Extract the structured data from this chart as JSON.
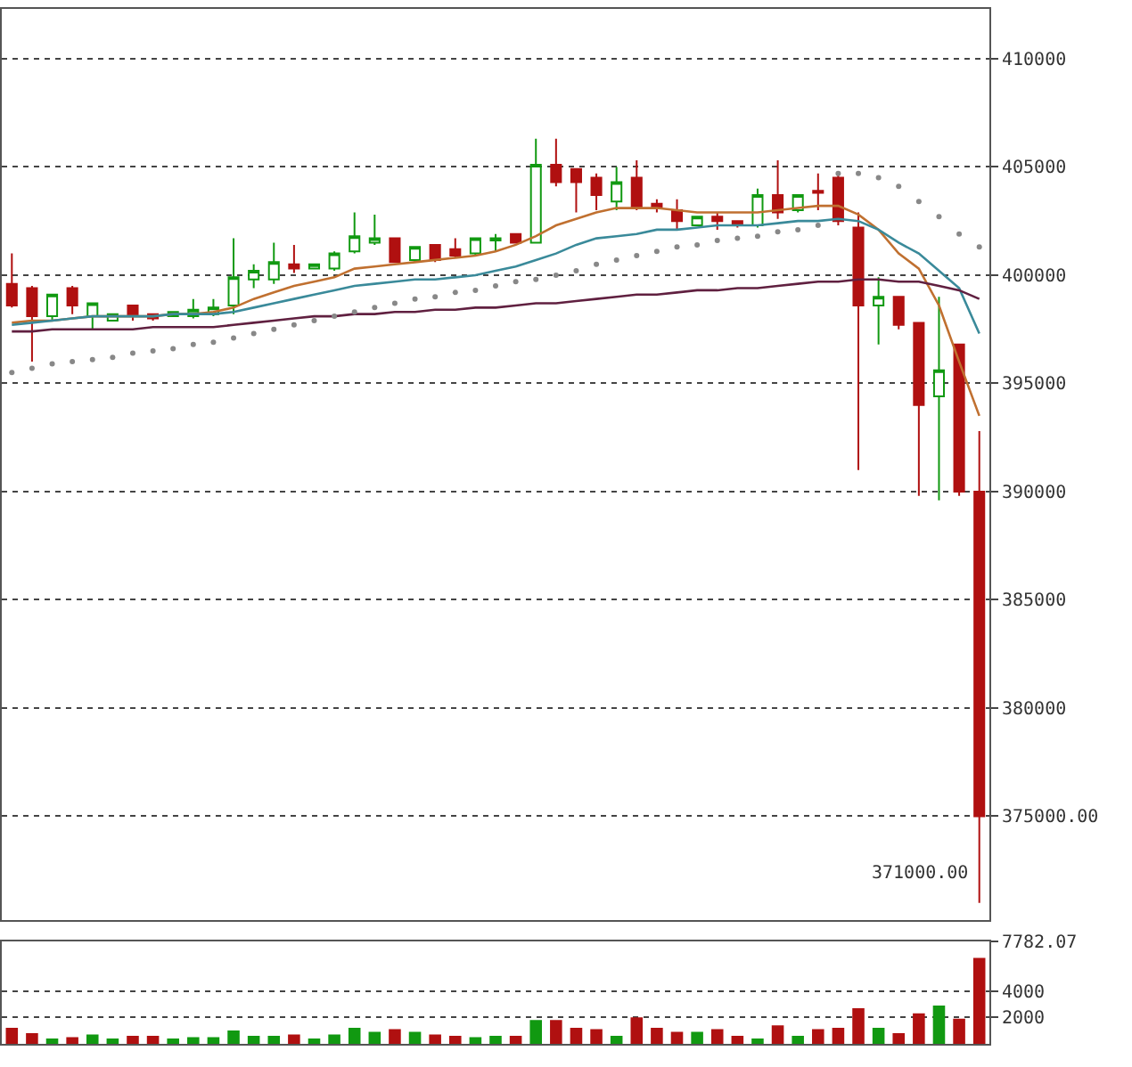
{
  "chart_data": [
    {
      "type": "candlestick",
      "categories": [
        null,
        null,
        null,
        null,
        null,
        null,
        null,
        null,
        null,
        null,
        null,
        null,
        null,
        null,
        null,
        null,
        null,
        null,
        null,
        null,
        null,
        null,
        null,
        null,
        null,
        null,
        null,
        null,
        null,
        null,
        null,
        null,
        null,
        null,
        null,
        null,
        null,
        null,
        null,
        null,
        null,
        null,
        null,
        null,
        null,
        null,
        null,
        null,
        null
      ],
      "ohlc": [
        [
          399600,
          401000,
          398500,
          398600
        ],
        [
          399400,
          399500,
          396000,
          398100
        ],
        [
          398100,
          399100,
          397900,
          399100
        ],
        [
          399400,
          399500,
          398200,
          398600
        ],
        [
          398100,
          398700,
          397500,
          398700
        ],
        [
          397900,
          398200,
          397900,
          398200
        ],
        [
          398600,
          398600,
          397900,
          398100
        ],
        [
          398200,
          398200,
          397900,
          398000
        ],
        [
          398100,
          398300,
          398100,
          398300
        ],
        [
          398100,
          398900,
          398000,
          398400
        ],
        [
          398200,
          398900,
          398100,
          398500
        ],
        [
          398600,
          401700,
          398200,
          399900
        ],
        [
          399800,
          400500,
          399400,
          400200
        ],
        [
          399800,
          401500,
          399600,
          400600
        ],
        [
          400500,
          401400,
          400100,
          400300
        ],
        [
          400300,
          400500,
          400300,
          400500
        ],
        [
          400300,
          401100,
          400200,
          401000
        ],
        [
          401100,
          402900,
          401000,
          401800
        ],
        [
          401500,
          402800,
          401400,
          401700
        ],
        [
          401700,
          401700,
          400600,
          400600
        ],
        [
          400700,
          401300,
          400600,
          401300
        ],
        [
          401400,
          401400,
          400600,
          400700
        ],
        [
          401200,
          401700,
          400800,
          400900
        ],
        [
          401000,
          401700,
          400900,
          401700
        ],
        [
          401600,
          401900,
          401100,
          401700
        ],
        [
          401900,
          401900,
          401500,
          401500
        ],
        [
          401500,
          406300,
          401500,
          405100
        ],
        [
          405100,
          406300,
          404100,
          404300
        ],
        [
          404900,
          404900,
          402900,
          404300
        ],
        [
          404500,
          404700,
          403000,
          403700
        ],
        [
          403400,
          405000,
          403000,
          404300
        ],
        [
          404500,
          405300,
          403000,
          403100
        ],
        [
          403300,
          403500,
          402900,
          403100
        ],
        [
          403000,
          403500,
          402100,
          402500
        ],
        [
          402300,
          402700,
          402300,
          402700
        ],
        [
          402700,
          402900,
          402100,
          402500
        ],
        [
          402500,
          402500,
          402200,
          402300
        ],
        [
          402300,
          404000,
          402200,
          403700
        ],
        [
          403700,
          405300,
          402600,
          402900
        ],
        [
          403000,
          403700,
          402900,
          403700
        ],
        [
          403900,
          404700,
          403000,
          403800
        ],
        [
          404500,
          404600,
          402300,
          402500
        ],
        [
          402200,
          402900,
          391000,
          398600
        ],
        [
          398600,
          399900,
          396800,
          399000
        ],
        [
          399000,
          399000,
          397500,
          397700
        ],
        [
          397800,
          397800,
          389800,
          394000
        ],
        [
          394400,
          399000,
          389600,
          395600
        ],
        [
          396800,
          396800,
          389800,
          390000
        ],
        [
          390000,
          392800,
          371000,
          375000
        ]
      ],
      "colors": [
        "#b01010",
        "#b01010",
        "#119911",
        "#b01010",
        "#119911",
        "#119911",
        "#b01010",
        "#b01010",
        "#119911",
        "#119911",
        "#119911",
        "#119911",
        "#119911",
        "#119911",
        "#b01010",
        "#119911",
        "#119911",
        "#119911",
        "#119911",
        "#b01010",
        "#119911",
        "#b01010",
        "#b01010",
        "#119911",
        "#119911",
        "#b01010",
        "#119911",
        "#b01010",
        "#b01010",
        "#b01010",
        "#119911",
        "#b01010",
        "#b01010",
        "#b01010",
        "#119911",
        "#b01010",
        "#b01010",
        "#119911",
        "#b01010",
        "#119911",
        "#b01010",
        "#b01010",
        "#b01010",
        "#119911",
        "#b01010",
        "#b01010",
        "#119911",
        "#b01010",
        "#b01010"
      ],
      "series": [
        {
          "type": "line",
          "color": "#c07030",
          "values": [
            397800,
            397900,
            397900,
            398000,
            398100,
            398100,
            398100,
            398100,
            398200,
            398200,
            398300,
            398500,
            398900,
            399200,
            399500,
            399700,
            399900,
            400300,
            400400,
            400500,
            400600,
            400700,
            400800,
            400900,
            401100,
            401400,
            401800,
            402300,
            402600,
            402900,
            403100,
            403100,
            403100,
            403000,
            402900,
            402900,
            402900,
            402900,
            403000,
            403100,
            403200,
            403200,
            402800,
            402100,
            401000,
            400300,
            398600,
            396000,
            393500
          ]
        },
        {
          "type": "line",
          "color": "#3a8a9a",
          "values": [
            397700,
            397800,
            397900,
            398000,
            398100,
            398100,
            398100,
            398100,
            398200,
            398200,
            398200,
            398300,
            398500,
            398700,
            398900,
            399100,
            399300,
            399500,
            399600,
            399700,
            399800,
            399800,
            399900,
            400000,
            400200,
            400400,
            400700,
            401000,
            401400,
            401700,
            401800,
            401900,
            402100,
            402100,
            402200,
            402300,
            402300,
            402300,
            402400,
            402500,
            402500,
            402600,
            402500,
            402100,
            401500,
            401000,
            400200,
            399400,
            397300
          ]
        },
        {
          "type": "line",
          "color": "#602040",
          "values": [
            397400,
            397400,
            397500,
            397500,
            397500,
            397500,
            397500,
            397600,
            397600,
            397600,
            397600,
            397700,
            397800,
            397900,
            398000,
            398100,
            398100,
            398200,
            398200,
            398300,
            398300,
            398400,
            398400,
            398500,
            398500,
            398600,
            398700,
            398700,
            398800,
            398900,
            399000,
            399100,
            399100,
            399200,
            399300,
            399300,
            399400,
            399400,
            399500,
            399600,
            399700,
            399700,
            399800,
            399800,
            399700,
            399700,
            399500,
            399300,
            398900
          ]
        },
        {
          "type": "scatter",
          "color": "#888888",
          "marker": "circle",
          "values": [
            395500,
            395700,
            395900,
            396000,
            396100,
            396200,
            396400,
            396500,
            396600,
            396800,
            396900,
            397100,
            397300,
            397500,
            397700,
            397900,
            398100,
            398300,
            398500,
            398700,
            398900,
            399000,
            399200,
            399300,
            399500,
            399700,
            399800,
            400000,
            400200,
            400500,
            400700,
            400900,
            401100,
            401300,
            401400,
            401600,
            401700,
            401800,
            402000,
            402100,
            402300,
            404700,
            404700,
            404500,
            404100,
            403400,
            402700,
            401900,
            401300
          ]
        }
      ],
      "ylim": [
        370200,
        412300
      ],
      "yticks": [
        {
          "value": 375000,
          "label": "375000.00"
        },
        380000,
        385000,
        390000,
        395000,
        400000,
        405000,
        410000
      ],
      "annotations": [
        "371000.00"
      ],
      "grid": "y",
      "tick_labels": "y"
    },
    {
      "type": "bar",
      "categories": [
        null,
        null,
        null,
        null,
        null,
        null,
        null,
        null,
        null,
        null,
        null,
        null,
        null,
        null,
        null,
        null,
        null,
        null,
        null,
        null,
        null,
        null,
        null,
        null,
        null,
        null,
        null,
        null,
        null,
        null,
        null,
        null,
        null,
        null,
        null,
        null,
        null,
        null,
        null,
        null,
        null,
        null,
        null,
        null,
        null,
        null,
        null,
        null,
        null
      ],
      "values": [
        1200,
        800,
        400,
        500,
        700,
        400,
        600,
        600,
        400,
        500,
        500,
        1000,
        600,
        600,
        700,
        400,
        700,
        1200,
        900,
        1100,
        900,
        700,
        600,
        500,
        600,
        600,
        1800,
        1800,
        1200,
        1100,
        600,
        2000,
        1200,
        900,
        900,
        1100,
        600,
        400,
        1400,
        600,
        1100,
        1200,
        2700,
        1200,
        800,
        2300,
        2900,
        1900,
        6500
      ],
      "colors": [
        "#b01010",
        "#b01010",
        "#119911",
        "#b01010",
        "#119911",
        "#119911",
        "#b01010",
        "#b01010",
        "#119911",
        "#119911",
        "#119911",
        "#119911",
        "#119911",
        "#119911",
        "#b01010",
        "#119911",
        "#119911",
        "#119911",
        "#119911",
        "#b01010",
        "#119911",
        "#b01010",
        "#b01010",
        "#119911",
        "#119911",
        "#b01010",
        "#119911",
        "#b01010",
        "#b01010",
        "#b01010",
        "#119911",
        "#b01010",
        "#b01010",
        "#b01010",
        "#119911",
        "#b01010",
        "#b01010",
        "#119911",
        "#b01010",
        "#119911",
        "#b01010",
        "#b01010",
        "#b01010",
        "#119911",
        "#b01010",
        "#b01010",
        "#119911",
        "#b01010",
        "#b01010"
      ],
      "ylim": [
        0,
        7782.07
      ],
      "yticks": [
        2000,
        4000,
        7782.07
      ],
      "grid": "y",
      "tick_labels": "y"
    }
  ]
}
